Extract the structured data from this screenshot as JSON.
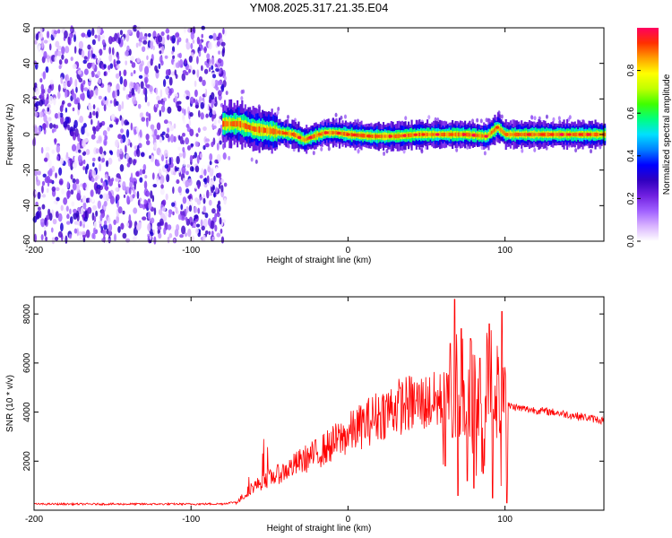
{
  "title": "YM08.2025.317.21.35.E04",
  "chart_data": [
    {
      "type": "heatmap",
      "title": "YM08.2025.317.21.35.E04",
      "xlabel": "Height of straight line (km)",
      "ylabel": "Frequency (Hz)",
      "xlim": [
        -200,
        163
      ],
      "ylim": [
        -60,
        60
      ],
      "xticks": [
        -200,
        -100,
        0,
        100
      ],
      "yticks": [
        -60,
        -40,
        -20,
        0,
        20,
        40,
        60
      ],
      "colorbar": {
        "label": "Normalized spectral amplitude",
        "range": [
          0.0,
          1.0
        ],
        "ticks": [
          0.0,
          0.2,
          0.4,
          0.6,
          0.8
        ],
        "tick_labels": [
          "0.0",
          "0.2",
          "0.4",
          "0.6",
          "0.8"
        ],
        "colormap": [
          "#ffffff",
          "#d9b3ff",
          "#a060ff",
          "#7020e0",
          "#3000c0",
          "#0000ff",
          "#0080ff",
          "#00e0ff",
          "#00ff80",
          "#40ff00",
          "#c0ff00",
          "#ffff00",
          "#ffa000",
          "#ff3000",
          "#ff0060"
        ]
      },
      "regions": [
        {
          "name": "broadband noise",
          "x_range": [
            -200,
            -80
          ],
          "y_range": [
            -60,
            60
          ],
          "amplitude": 0.2
        },
        {
          "name": "signal band",
          "x_range": [
            -80,
            163
          ],
          "center_hz": 0,
          "halfwidth_hz": 4,
          "amplitude": 0.95
        }
      ],
      "centerline": [
        [
          -80,
          6
        ],
        [
          -70,
          6
        ],
        [
          -60,
          3
        ],
        [
          -50,
          2
        ],
        [
          -42,
          1
        ],
        [
          -35,
          0
        ],
        [
          -28,
          -3
        ],
        [
          -22,
          -1
        ],
        [
          -15,
          1
        ],
        [
          -8,
          1
        ],
        [
          0,
          0
        ],
        [
          15,
          -1
        ],
        [
          30,
          -1
        ],
        [
          45,
          0
        ],
        [
          60,
          0
        ],
        [
          75,
          0
        ],
        [
          88,
          -1
        ],
        [
          95,
          4
        ],
        [
          100,
          0
        ],
        [
          120,
          0
        ],
        [
          140,
          0
        ],
        [
          163,
          0
        ]
      ]
    },
    {
      "type": "line",
      "title": "",
      "xlabel": "Height of straight line (km)",
      "ylabel": "SNR (10 * v/v)",
      "xlim": [
        -200,
        163
      ],
      "ylim": [
        0,
        8700
      ],
      "xticks": [
        -200,
        -100,
        0,
        100
      ],
      "yticks": [
        2000,
        4000,
        6000,
        8000
      ],
      "series": [
        {
          "name": "SNR",
          "color": "#ff0000",
          "trend": [
            [
              -200,
              250
            ],
            [
              -150,
              250
            ],
            [
              -100,
              250
            ],
            [
              -80,
              260
            ],
            [
              -70,
              350
            ],
            [
              -62,
              900
            ],
            [
              -50,
              1300
            ],
            [
              -40,
              1600
            ],
            [
              -30,
              2000
            ],
            [
              -20,
              2300
            ],
            [
              -10,
              2700
            ],
            [
              0,
              3100
            ],
            [
              10,
              3500
            ],
            [
              20,
              3900
            ],
            [
              30,
              4200
            ],
            [
              40,
              4350
            ],
            [
              50,
              4400
            ],
            [
              60,
              4450
            ],
            [
              70,
              4500
            ],
            [
              80,
              4450
            ],
            [
              95,
              4400
            ],
            [
              100,
              4300
            ],
            [
              110,
              4150
            ],
            [
              130,
              4000
            ],
            [
              150,
              3800
            ],
            [
              163,
              3650
            ]
          ],
          "peaks": [
            [
              65,
              6800
            ],
            [
              68,
              8600
            ],
            [
              72,
              7400
            ],
            [
              78,
              7000
            ],
            [
              84,
              6200
            ],
            [
              90,
              7600
            ],
            [
              98,
              8100
            ]
          ],
          "dips": [
            [
              62,
              1800
            ],
            [
              70,
              600
            ],
            [
              76,
              1200
            ],
            [
              80,
              900
            ],
            [
              86,
              1500
            ],
            [
              92,
              500
            ],
            [
              101,
              300
            ]
          ]
        }
      ]
    }
  ]
}
